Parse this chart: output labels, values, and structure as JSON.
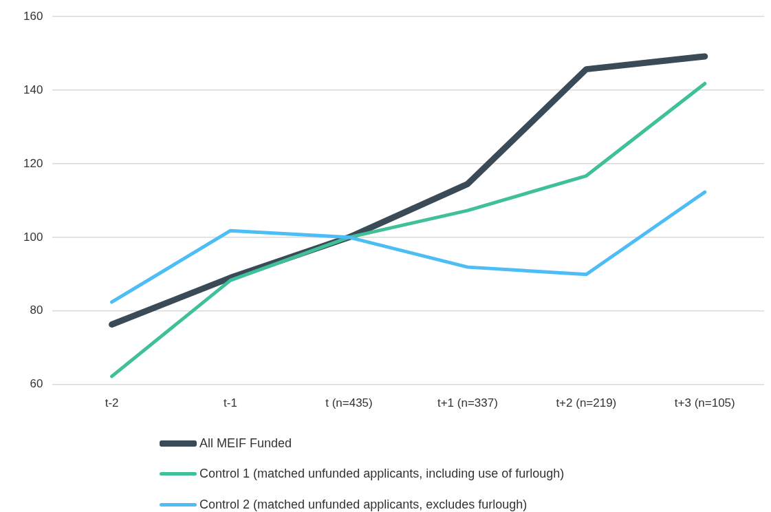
{
  "chart_data": {
    "type": "line",
    "categories": [
      "t-2",
      "t-1",
      "t (n=435)",
      "t+1 (n=337)",
      "t+2 (n=219)",
      "t+3 (n=105)"
    ],
    "series": [
      {
        "name": "All MEIF Funded",
        "color": "#3b4a57",
        "values": [
          76.3,
          89,
          100,
          114.5,
          145.7,
          149.2
        ]
      },
      {
        "name": "Control 1 (matched unfunded applicants, including use of furlough)",
        "color": "#40c09a",
        "values": [
          62.2,
          88.3,
          100,
          107.3,
          116.7,
          141.8
        ]
      },
      {
        "name": "Control 2 (matched unfunded applicants, excludes furlough)",
        "color": "#4dbdf5",
        "values": [
          82.4,
          101.8,
          100,
          91.9,
          89.9,
          112.3
        ]
      }
    ],
    "ylim": [
      60,
      160
    ],
    "yticks": [
      60,
      80,
      100,
      120,
      140,
      160
    ],
    "grid": "y",
    "legend": "bottom",
    "marker": "none",
    "line_style": "solid"
  }
}
